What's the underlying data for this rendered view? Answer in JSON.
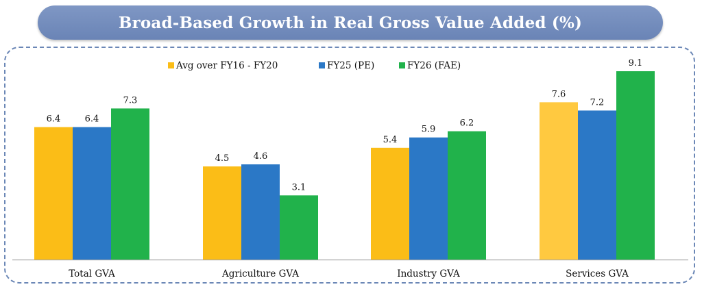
{
  "chart_data": {
    "type": "bar",
    "title": "Broad-Based Growth in Real Gross Value Added (%)",
    "categories": [
      "Total GVA",
      "Agriculture GVA",
      "Industry GVA",
      "Services GVA"
    ],
    "series": [
      {
        "name": "Avg over FY16 - FY20",
        "color": "#fbbd17",
        "values": [
          6.4,
          4.5,
          5.4,
          7.6
        ],
        "labels": [
          "6.4",
          "4.5",
          "5.4",
          "7.6"
        ]
      },
      {
        "name": "FY25 (PE)",
        "color": "#2b78c6",
        "values": [
          6.4,
          4.6,
          5.9,
          7.2
        ],
        "labels": [
          "6.4",
          "4.6",
          "5.9",
          "7.2"
        ]
      },
      {
        "name": "FY26 (FAE)",
        "color": "#21b24b",
        "values": [
          7.3,
          3.1,
          6.2,
          9.1
        ],
        "labels": [
          "7.3",
          "3.1",
          "6.2",
          "9.1"
        ]
      }
    ],
    "ylim": [
      0,
      9.1
    ],
    "grid": false,
    "legend": "top-center"
  },
  "colors": {
    "banner": "#7289bd",
    "frame_border": "#6b87b6",
    "services_yellow": "#ffc940"
  }
}
